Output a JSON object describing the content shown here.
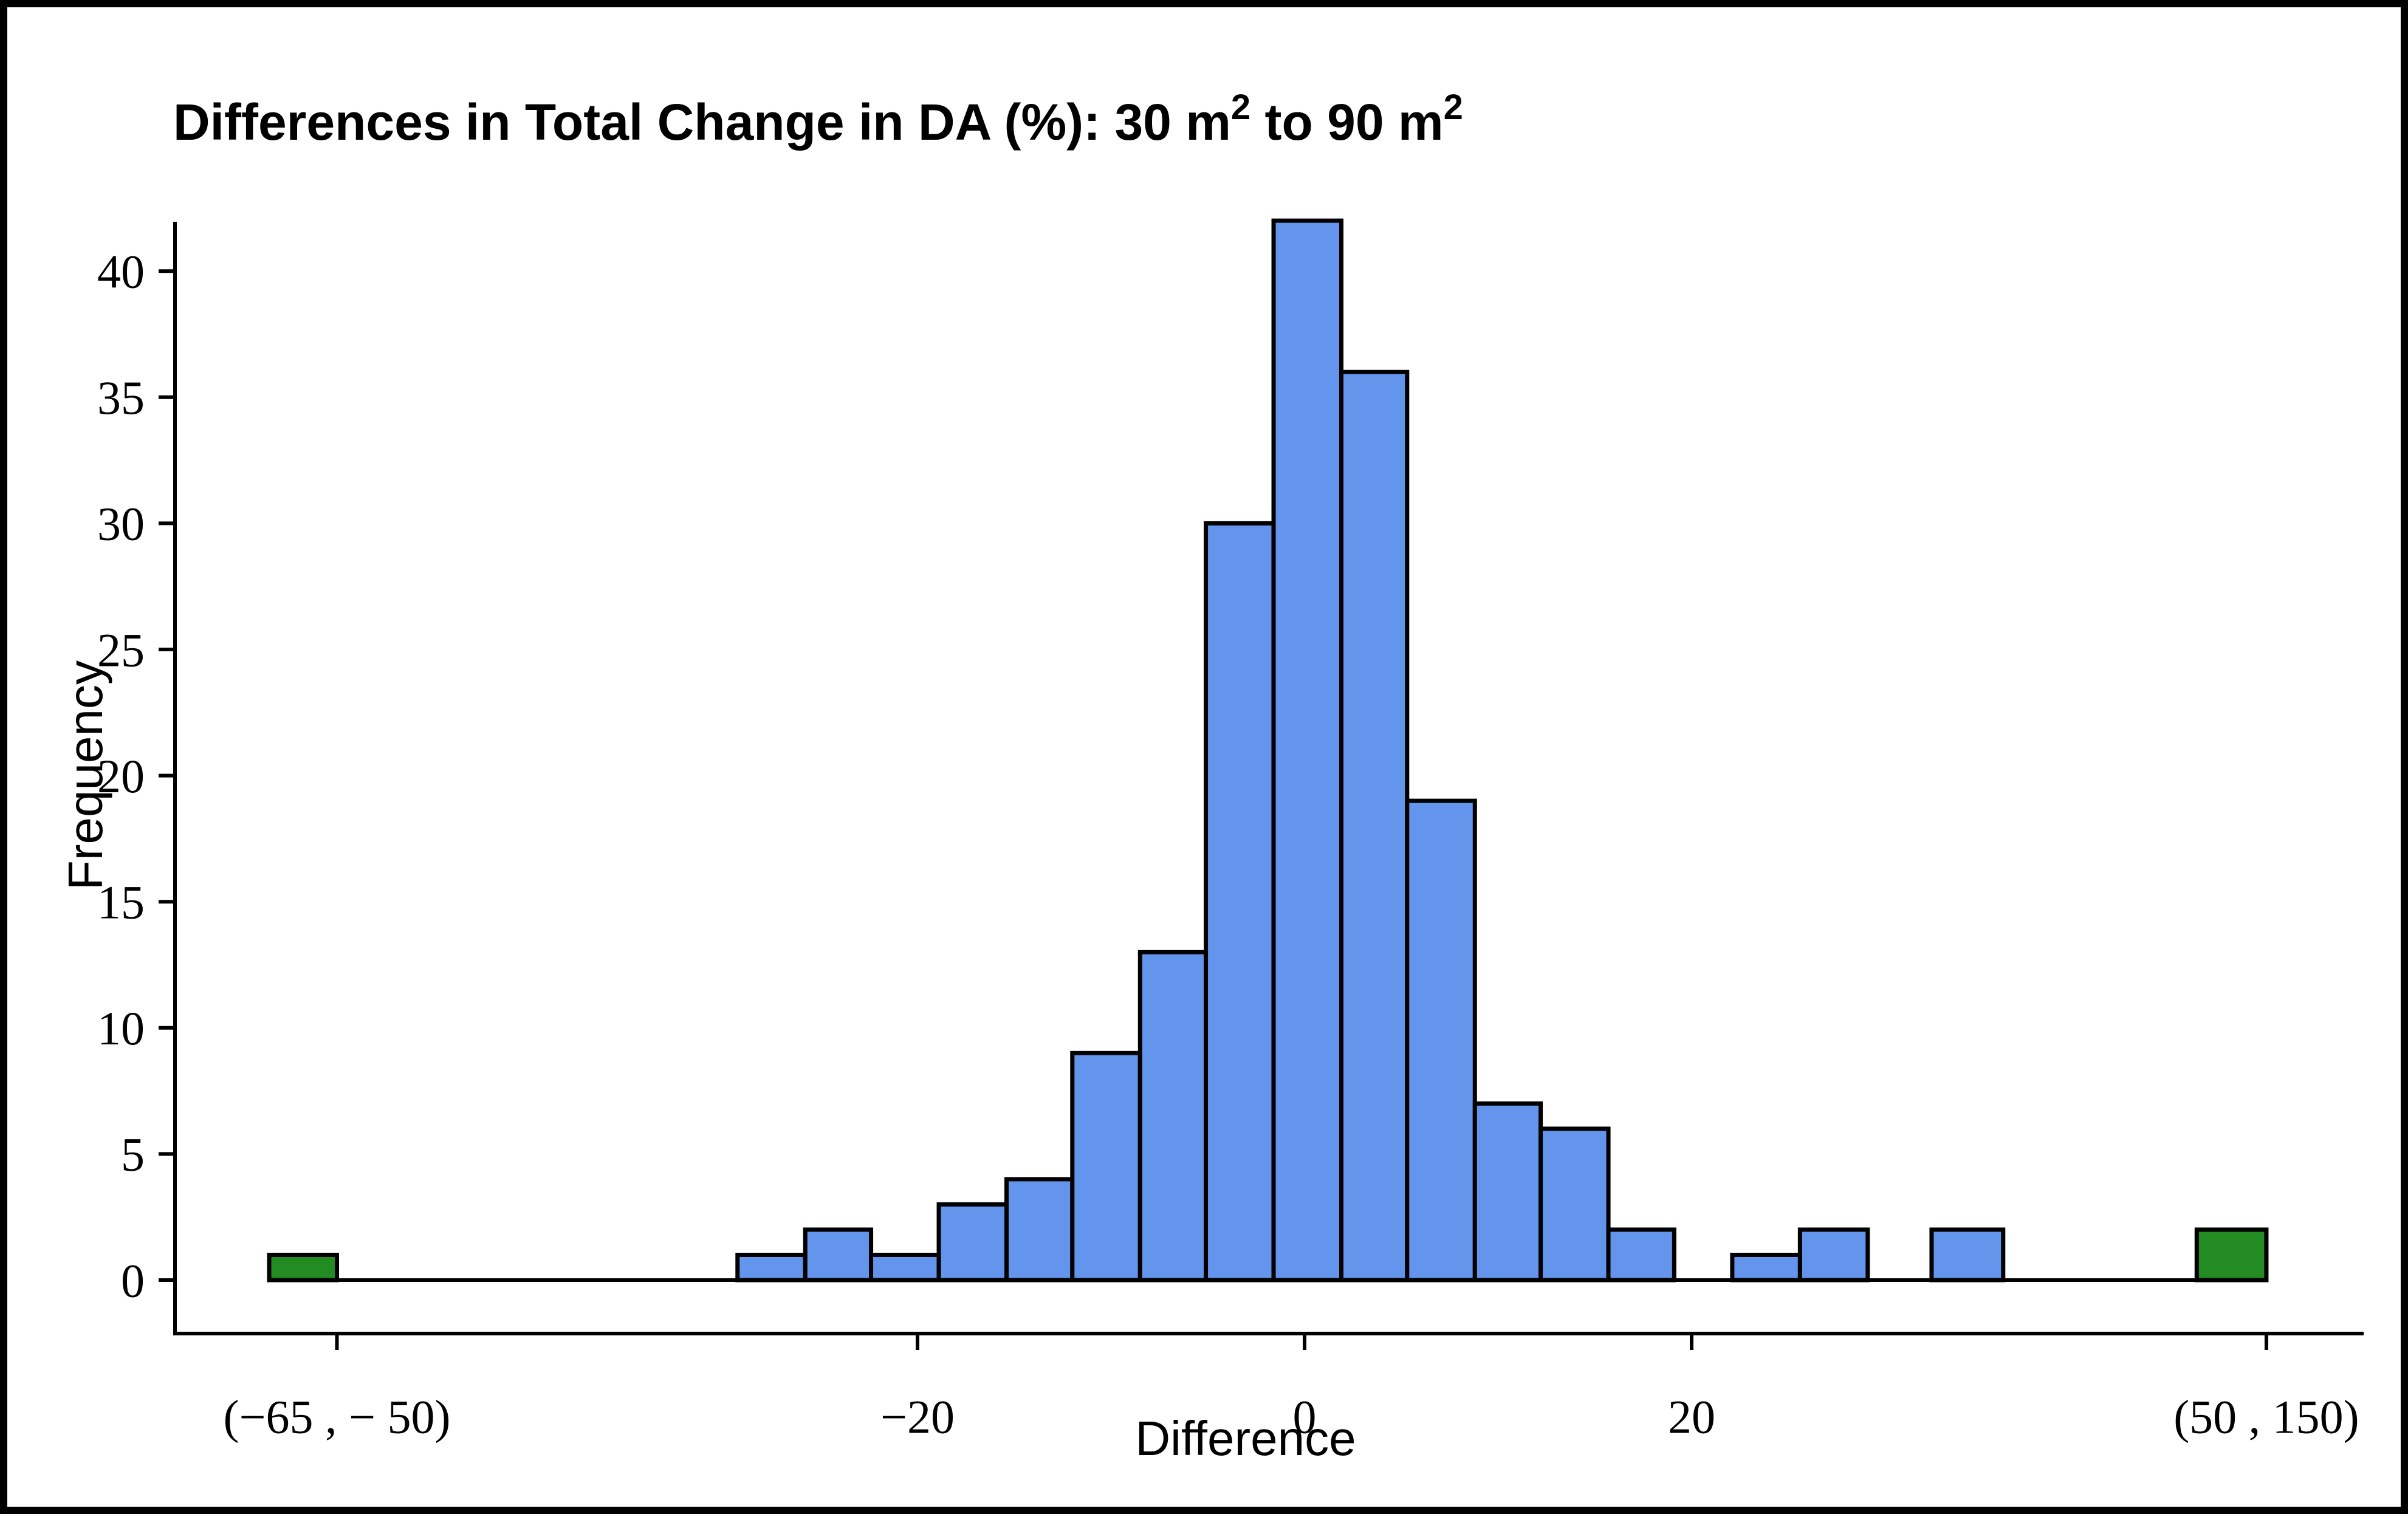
{
  "title": {
    "segments": [
      {
        "text": "Differences in Total Change in DA (%): 30 m",
        "superscript": false
      },
      {
        "text": "2",
        "superscript": true
      },
      {
        "text": " to 90 m",
        "superscript": false
      },
      {
        "text": "2",
        "superscript": true
      }
    ],
    "plain": "Differences in Total Change in DA (%): 30 m2 to 90 m2"
  },
  "colors": {
    "bar_main": "#6495ED",
    "bar_overflow": "#228B22",
    "bar_border": "#000000",
    "axis": "#000000",
    "text": "#000000",
    "background": "#FFFFFF",
    "frame": "#000000"
  },
  "chart_data": {
    "type": "bar",
    "subtype": "histogram",
    "title": "Differences in Total Change in DA (%): 30 m2 to 90 m2",
    "xlabel": "Difference",
    "ylabel": "Frequency",
    "xlim": [
      -57,
      57
    ],
    "ylim": [
      0,
      43
    ],
    "grid": false,
    "legend": "none",
    "y_ticks": [
      0,
      5,
      10,
      15,
      20,
      25,
      30,
      35,
      40
    ],
    "x_ticks": [
      {
        "value": -50.0,
        "label": "(−65 , − 50)"
      },
      {
        "value": -20.0,
        "label": "−20"
      },
      {
        "value": 0.0,
        "label": "0"
      },
      {
        "value": 20.0,
        "label": "20"
      },
      {
        "value": 49.7,
        "label": "(50 , 150)"
      }
    ],
    "bins": [
      {
        "x0": -53.5,
        "x1": -50.0,
        "count": 1,
        "series": "overflow",
        "range_label": "(−65 , − 50)"
      },
      {
        "x0": -29.3,
        "x1": -25.8,
        "count": 1,
        "series": "main"
      },
      {
        "x0": -25.8,
        "x1": -22.4,
        "count": 2,
        "series": "main"
      },
      {
        "x0": -22.4,
        "x1": -18.9,
        "count": 1,
        "series": "main"
      },
      {
        "x0": -18.9,
        "x1": -15.4,
        "count": 3,
        "series": "main"
      },
      {
        "x0": -15.4,
        "x1": -12.0,
        "count": 4,
        "series": "main"
      },
      {
        "x0": -12.0,
        "x1": -8.5,
        "count": 9,
        "series": "main"
      },
      {
        "x0": -8.5,
        "x1": -5.1,
        "count": 13,
        "series": "main"
      },
      {
        "x0": -5.1,
        "x1": -1.6,
        "count": 30,
        "series": "main"
      },
      {
        "x0": -1.6,
        "x1": 1.9,
        "count": 42,
        "series": "main"
      },
      {
        "x0": 1.9,
        "x1": 5.3,
        "count": 36,
        "series": "main"
      },
      {
        "x0": 5.3,
        "x1": 8.8,
        "count": 19,
        "series": "main"
      },
      {
        "x0": 8.8,
        "x1": 12.2,
        "count": 7,
        "series": "main"
      },
      {
        "x0": 12.2,
        "x1": 15.7,
        "count": 6,
        "series": "main"
      },
      {
        "x0": 15.7,
        "x1": 19.1,
        "count": 2,
        "series": "main"
      },
      {
        "x0": 22.1,
        "x1": 25.6,
        "count": 1,
        "series": "main"
      },
      {
        "x0": 25.6,
        "x1": 29.1,
        "count": 2,
        "series": "main"
      },
      {
        "x0": 32.4,
        "x1": 36.1,
        "count": 2,
        "series": "main"
      },
      {
        "x0": 46.1,
        "x1": 49.7,
        "count": 2,
        "series": "overflow",
        "range_label": "(50 , 150)"
      }
    ]
  }
}
